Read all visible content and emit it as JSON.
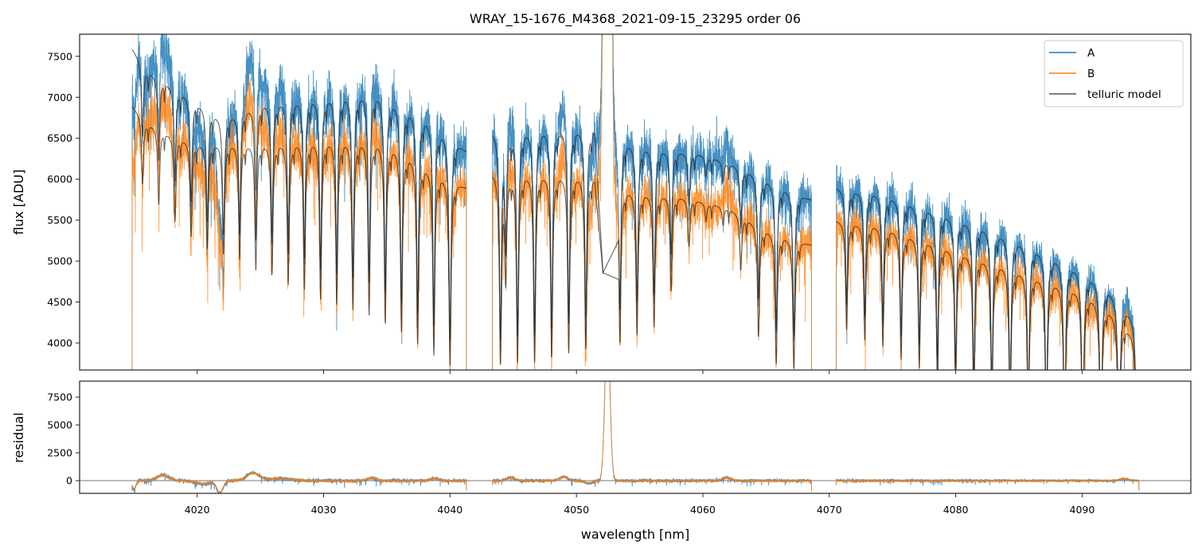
{
  "chart_data": [
    {
      "type": "line",
      "title": "WRAY_15-1676_M4368_2021-09-15_23295  order 06",
      "xlabel": "",
      "ylabel": "flux [ADU]",
      "xlim": [
        4010.7,
        4098.6
      ],
      "ylim": [
        3670,
        7770
      ],
      "grid": false,
      "legend_position": "top-right",
      "x_ticks": [
        "4020",
        "4030",
        "4040",
        "4050",
        "4060",
        "4070",
        "4080",
        "4090"
      ],
      "y_ticks": [
        "4000",
        "4500",
        "5000",
        "5500",
        "6000",
        "6500",
        "7000",
        "7500"
      ],
      "segments_nm": [
        [
          4014.85,
          4041.3
        ],
        [
          4043.35,
          4068.6
        ],
        [
          4070.55,
          4094.5
        ]
      ],
      "series": [
        {
          "name": "A",
          "color": "#1f77b4",
          "continuum": [
            [
              4014.85,
              7600
            ],
            [
              4016,
              7350
            ],
            [
              4018,
              7150
            ],
            [
              4020,
              6950
            ],
            [
              4022,
              6750
            ],
            [
              4025,
              6950
            ],
            [
              4028,
              7000
            ],
            [
              4031,
              7050
            ],
            [
              4034,
              7100
            ],
            [
              4036,
              6950
            ],
            [
              4038,
              6800
            ],
            [
              4041.3,
              6350
            ],
            [
              4043.35,
              6600
            ],
            [
              4047,
              6650
            ],
            [
              4051,
              6650
            ],
            [
              4053.4,
              6500
            ],
            [
              4056,
              6400
            ],
            [
              4060,
              6300
            ],
            [
              4063,
              6150
            ],
            [
              4066,
              5950
            ],
            [
              4068.6,
              5750
            ],
            [
              4070.55,
              5900
            ],
            [
              4074,
              5850
            ],
            [
              4078,
              5650
            ],
            [
              4082,
              5450
            ],
            [
              4086,
              5200
            ],
            [
              4090,
              4900
            ],
            [
              4092,
              4700
            ],
            [
              4094.5,
              4250
            ]
          ]
        },
        {
          "name": "B",
          "color": "#ff7f0e",
          "continuum": [
            [
              4014.85,
              6900
            ],
            [
              4016,
              6700
            ],
            [
              4018,
              6550
            ],
            [
              4020,
              6450
            ],
            [
              4025,
              6450
            ],
            [
              4030,
              6500
            ],
            [
              4034,
              6500
            ],
            [
              4036,
              6400
            ],
            [
              4038,
              6200
            ],
            [
              4041.3,
              5900
            ],
            [
              4043.35,
              6100
            ],
            [
              4048,
              6100
            ],
            [
              4051,
              6050
            ],
            [
              4053.4,
              5900
            ],
            [
              4058,
              5800
            ],
            [
              4062,
              5650
            ],
            [
              4065,
              5400
            ],
            [
              4068.6,
              5200
            ],
            [
              4070.55,
              5500
            ],
            [
              4074,
              5450
            ],
            [
              4078,
              5250
            ],
            [
              4082,
              5050
            ],
            [
              4086,
              4850
            ],
            [
              4090,
              4650
            ],
            [
              4092,
              4450
            ],
            [
              4094.5,
              4050
            ]
          ]
        },
        {
          "name": "telluric model",
          "color": "#555555"
        }
      ],
      "telluric_lines_nm_depth": [
        [
          4015.68,
          0.12
        ],
        [
          4016.96,
          0.14
        ],
        [
          4018.24,
          0.16
        ],
        [
          4019.52,
          0.18
        ],
        [
          4020.8,
          0.2
        ],
        [
          4022.08,
          0.21
        ],
        [
          4023.36,
          0.22
        ],
        [
          4024.64,
          0.24
        ],
        [
          4025.92,
          0.25
        ],
        [
          4027.2,
          0.27
        ],
        [
          4028.48,
          0.28
        ],
        [
          4029.76,
          0.3
        ],
        [
          4031.04,
          0.31
        ],
        [
          4032.32,
          0.32
        ],
        [
          4033.6,
          0.33
        ],
        [
          4034.88,
          0.34
        ],
        [
          4036.16,
          0.35
        ],
        [
          4037.44,
          0.36
        ],
        [
          4038.72,
          0.37
        ],
        [
          4040.0,
          0.38
        ],
        [
          4043.99,
          0.38
        ],
        [
          4044.4,
          0.2
        ],
        [
          4045.34,
          0.38
        ],
        [
          4046.69,
          0.38
        ],
        [
          4048.04,
          0.37
        ],
        [
          4049.39,
          0.36
        ],
        [
          4050.74,
          0.35
        ],
        [
          4053.44,
          0.32
        ],
        [
          4054.79,
          0.3
        ],
        [
          4056.14,
          0.28
        ],
        [
          4057.49,
          0.2
        ],
        [
          4058.9,
          0.1
        ],
        [
          4060.25,
          0.04
        ],
        [
          4061.6,
          0.04
        ],
        [
          4063.0,
          0.12
        ],
        [
          4064.4,
          0.25
        ],
        [
          4065.8,
          0.3
        ],
        [
          4067.2,
          0.3
        ],
        [
          4071.37,
          0.24
        ],
        [
          4072.81,
          0.26
        ],
        [
          4074.24,
          0.27
        ],
        [
          4075.68,
          0.29
        ],
        [
          4077.12,
          0.3
        ],
        [
          4078.55,
          0.32
        ],
        [
          4079.99,
          0.33
        ],
        [
          4081.43,
          0.35
        ],
        [
          4082.86,
          0.36
        ],
        [
          4084.3,
          0.37
        ],
        [
          4085.74,
          0.38
        ],
        [
          4087.17,
          0.4
        ],
        [
          4088.61,
          0.41
        ],
        [
          4090.05,
          0.42
        ],
        [
          4091.48,
          0.43
        ],
        [
          4092.92,
          0.44
        ],
        [
          4094.35,
          0.45
        ]
      ],
      "stellar_features_nm_amp_sigma": [
        [
          4015.0,
          -800,
          0.15
        ],
        [
          4017.3,
          500,
          0.5
        ],
        [
          4020.5,
          -300,
          0.6
        ],
        [
          4021.8,
          -1100,
          0.25
        ],
        [
          4024.4,
          700,
          0.5
        ],
        [
          4026.5,
          200,
          0.8
        ],
        [
          4033.8,
          250,
          0.3
        ],
        [
          4038.8,
          200,
          0.3
        ],
        [
          4044.8,
          300,
          0.3
        ],
        [
          4049.0,
          350,
          0.3
        ],
        [
          4051.0,
          -250,
          0.3
        ],
        [
          4052.45,
          14000,
          0.2
        ],
        [
          4061.9,
          300,
          0.3
        ],
        [
          4093.3,
          150,
          0.4
        ]
      ]
    },
    {
      "type": "line",
      "xlabel": "wavelength [nm]",
      "ylabel": "residual",
      "xlim": [
        4010.7,
        4098.6
      ],
      "ylim": [
        -1140,
        8930
      ],
      "grid": false,
      "reference_line": 0,
      "x_ticks": [
        "4020",
        "4030",
        "4040",
        "4050",
        "4060",
        "4070",
        "4080",
        "4090"
      ],
      "y_ticks": [
        "0",
        "2500",
        "5000",
        "7500"
      ],
      "series": [
        {
          "name": "A",
          "color": "#1f77b4"
        },
        {
          "name": "B",
          "color": "#ff7f0e"
        }
      ]
    }
  ]
}
